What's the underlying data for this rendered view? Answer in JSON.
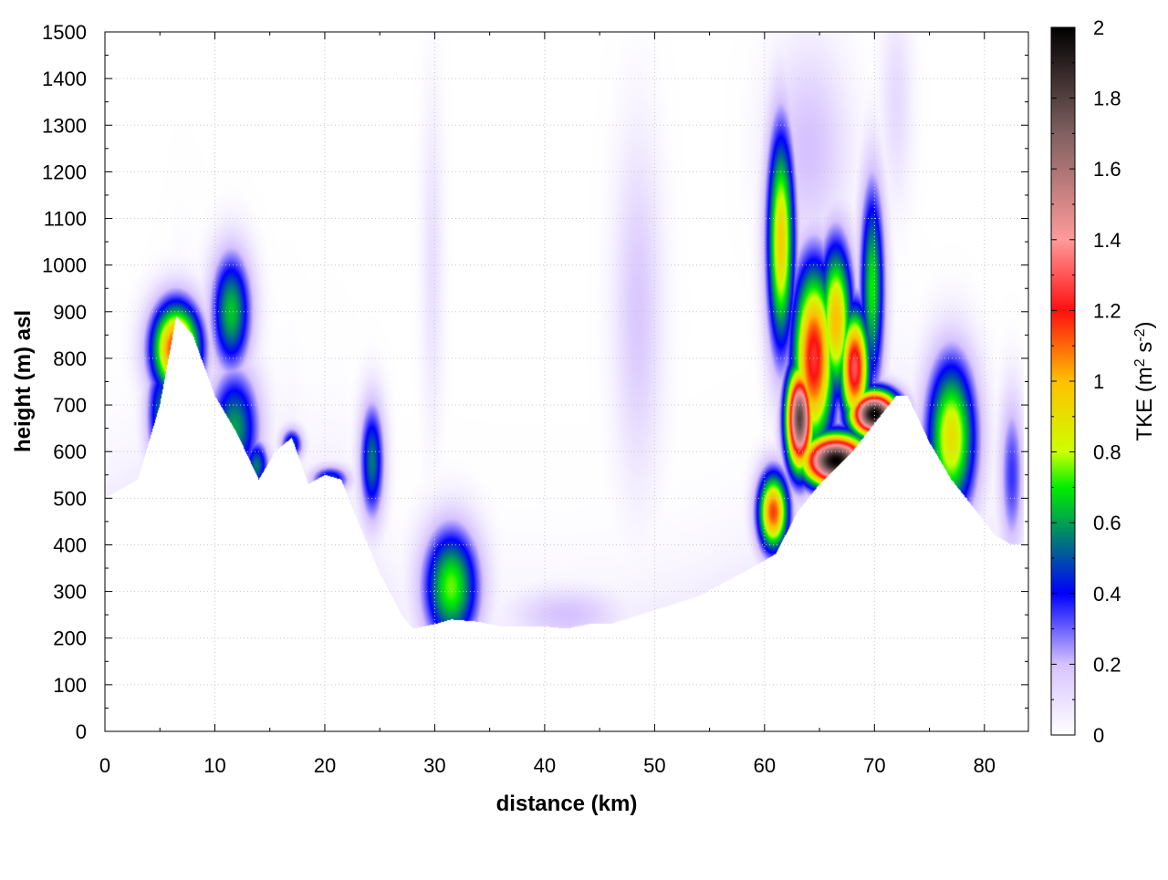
{
  "chart_data": {
    "type": "heatmap",
    "title": "",
    "xlabel": "distance (km)",
    "ylabel": "height (m) asl",
    "colorbar_label_main": "TKE (m",
    "colorbar_label_sup1": "2",
    "colorbar_label_mid": " s",
    "colorbar_label_sup2": "-2",
    "colorbar_label_end": ")",
    "xlim": [
      0,
      84
    ],
    "ylim": [
      0,
      1500
    ],
    "clim": [
      0,
      2
    ],
    "grid": true,
    "x_ticks": [
      0,
      10,
      20,
      30,
      40,
      50,
      60,
      70,
      80
    ],
    "x_tick_labels": [
      "0",
      "10",
      "20",
      "30",
      "40",
      "50",
      "60",
      "70",
      "80"
    ],
    "y_ticks": [
      0,
      100,
      200,
      300,
      400,
      500,
      600,
      700,
      800,
      900,
      1000,
      1100,
      1200,
      1300,
      1400,
      1500
    ],
    "y_tick_labels": [
      "0",
      "100",
      "200",
      "300",
      "400",
      "500",
      "600",
      "700",
      "800",
      "900",
      "1000",
      "1100",
      "1200",
      "1300",
      "1400",
      "1500"
    ],
    "c_ticks": [
      0,
      0.2,
      0.4,
      0.6,
      0.8,
      1,
      1.2,
      1.4,
      1.6,
      1.8,
      2
    ],
    "c_tick_labels": [
      "0",
      "0.2",
      "0.4",
      "0.6",
      "0.8",
      "1",
      "1.2",
      "1.4",
      "1.6",
      "1.8",
      "2"
    ],
    "colormap": [
      [
        0.0,
        "#ffffff"
      ],
      [
        0.1,
        "#d6c2ff"
      ],
      [
        0.2,
        "#0000ff"
      ],
      [
        0.3,
        "#00a050"
      ],
      [
        0.35,
        "#00ee00"
      ],
      [
        0.4,
        "#ccff00"
      ],
      [
        0.5,
        "#ffc000"
      ],
      [
        0.6,
        "#ff1010"
      ],
      [
        0.7,
        "#ff9a9a"
      ],
      [
        0.85,
        "#806060"
      ],
      [
        1.0,
        "#000000"
      ]
    ],
    "terrain": [
      [
        0,
        500
      ],
      [
        3,
        540
      ],
      [
        5,
        700
      ],
      [
        6.5,
        890
      ],
      [
        8,
        850
      ],
      [
        10,
        720
      ],
      [
        12,
        640
      ],
      [
        14,
        540
      ],
      [
        15.5,
        600
      ],
      [
        17,
        630
      ],
      [
        18.5,
        530
      ],
      [
        20,
        550
      ],
      [
        21.5,
        540
      ],
      [
        23,
        450
      ],
      [
        25,
        340
      ],
      [
        27,
        250
      ],
      [
        28,
        220
      ],
      [
        30,
        230
      ],
      [
        31.5,
        240
      ],
      [
        34,
        235
      ],
      [
        36,
        225
      ],
      [
        40,
        225
      ],
      [
        42,
        220
      ],
      [
        44,
        230
      ],
      [
        46,
        230
      ],
      [
        50,
        260
      ],
      [
        54,
        290
      ],
      [
        58,
        340
      ],
      [
        61,
        380
      ],
      [
        63,
        470
      ],
      [
        65,
        530
      ],
      [
        68,
        600
      ],
      [
        70,
        660
      ],
      [
        72,
        720
      ],
      [
        73,
        720
      ],
      [
        75,
        620
      ],
      [
        77,
        540
      ],
      [
        79,
        480
      ],
      [
        81,
        420
      ],
      [
        82.5,
        400
      ],
      [
        83.5,
        400
      ]
    ],
    "tke_features": [
      {
        "x": 6.5,
        "y": 820,
        "sx": 1.6,
        "sy": 70,
        "value": 1.2
      },
      {
        "x": 5.2,
        "y": 680,
        "sx": 1.0,
        "sy": 90,
        "value": 0.55
      },
      {
        "x": 11.5,
        "y": 900,
        "sx": 1.3,
        "sy": 90,
        "value": 0.65
      },
      {
        "x": 11.8,
        "y": 650,
        "sx": 1.6,
        "sy": 90,
        "value": 0.6
      },
      {
        "x": 13.8,
        "y": 570,
        "sx": 0.8,
        "sy": 40,
        "value": 0.55
      },
      {
        "x": 17,
        "y": 615,
        "sx": 0.7,
        "sy": 25,
        "value": 0.5
      },
      {
        "x": 20.5,
        "y": 540,
        "sx": 1.2,
        "sy": 20,
        "value": 0.5
      },
      {
        "x": 24.3,
        "y": 580,
        "sx": 0.8,
        "sy": 90,
        "value": 0.55
      },
      {
        "x": 31.5,
        "y": 310,
        "sx": 1.8,
        "sy": 90,
        "value": 0.75
      },
      {
        "x": 42,
        "y": 250,
        "sx": 3.5,
        "sy": 40,
        "value": 0.2
      },
      {
        "x": 29.8,
        "y": 1000,
        "sx": 0.7,
        "sy": 250,
        "value": 0.1
      },
      {
        "x": 48.5,
        "y": 900,
        "sx": 1.5,
        "sy": 250,
        "value": 0.18
      },
      {
        "x": 60.8,
        "y": 470,
        "sx": 1.0,
        "sy": 60,
        "value": 1.15
      },
      {
        "x": 61.5,
        "y": 1050,
        "sx": 0.9,
        "sy": 170,
        "value": 0.95
      },
      {
        "x": 63.2,
        "y": 670,
        "sx": 0.9,
        "sy": 80,
        "value": 1.8
      },
      {
        "x": 64.5,
        "y": 800,
        "sx": 1.4,
        "sy": 140,
        "value": 1.25
      },
      {
        "x": 66.5,
        "y": 880,
        "sx": 1.1,
        "sy": 120,
        "value": 1.0
      },
      {
        "x": 68.2,
        "y": 780,
        "sx": 1.0,
        "sy": 90,
        "value": 1.3
      },
      {
        "x": 69.8,
        "y": 950,
        "sx": 0.8,
        "sy": 160,
        "value": 0.7
      },
      {
        "x": 66.5,
        "y": 580,
        "sx": 2.2,
        "sy": 40,
        "value": 2.0
      },
      {
        "x": 70,
        "y": 680,
        "sx": 1.6,
        "sy": 35,
        "value": 2.0
      },
      {
        "x": 64,
        "y": 1250,
        "sx": 2.5,
        "sy": 150,
        "value": 0.2
      },
      {
        "x": 72,
        "y": 1350,
        "sx": 1.0,
        "sy": 150,
        "value": 0.12
      },
      {
        "x": 77,
        "y": 630,
        "sx": 1.6,
        "sy": 120,
        "value": 0.9
      },
      {
        "x": 82.5,
        "y": 550,
        "sx": 0.8,
        "sy": 120,
        "value": 0.35
      }
    ]
  }
}
